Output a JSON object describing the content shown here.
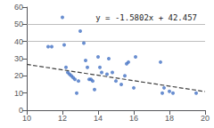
{
  "chart_data": {
    "type": "scatter",
    "annotation": "y = -1.5802x + 42.457",
    "xlim": [
      10,
      20
    ],
    "ylim": [
      0,
      60
    ],
    "xticks": [
      10,
      12,
      14,
      16,
      18,
      20
    ],
    "yticks": [
      0,
      10,
      20,
      30,
      40,
      50,
      60
    ],
    "grid": false,
    "hlines": [
      50,
      40
    ],
    "hline_color": "#A0A0A0",
    "series": [
      {
        "type": "scatter",
        "color": "#4472C4",
        "marker": "circle",
        "x": [
          11.2,
          11.4,
          12.0,
          12.1,
          12.2,
          12.3,
          12.4,
          12.5,
          12.6,
          12.7,
          12.8,
          12.9,
          13.0,
          13.2,
          13.3,
          13.4,
          13.5,
          13.6,
          13.7,
          13.8,
          14.0,
          14.1,
          14.2,
          14.5,
          14.6,
          14.8,
          15.0,
          15.3,
          15.5,
          15.6,
          15.7,
          16.0,
          16.1,
          17.5,
          17.6,
          17.7,
          18.0,
          18.2,
          19.5
        ],
        "values": [
          37,
          37,
          54,
          38,
          25,
          22,
          21,
          20,
          19,
          18,
          10,
          17,
          46,
          39,
          29,
          25,
          18,
          18,
          17,
          12,
          31,
          25,
          22,
          21,
          30,
          22,
          17,
          15,
          20,
          27,
          28,
          13,
          31,
          28,
          10,
          13,
          11,
          10,
          10
        ]
      },
      {
        "type": "line",
        "color": "#404040",
        "line_style": "dashed",
        "x": [
          10,
          20
        ],
        "values": [
          26.655,
          10.853
        ]
      }
    ]
  }
}
